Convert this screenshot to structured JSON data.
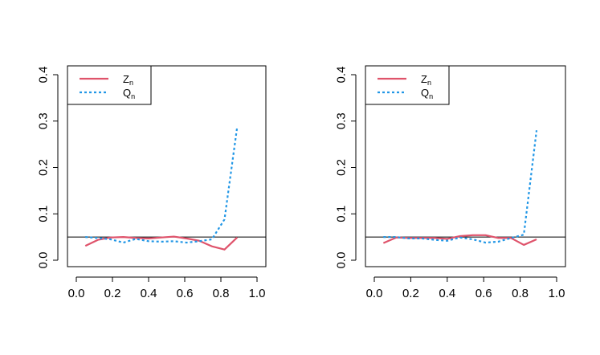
{
  "chart_data": [
    {
      "type": "line",
      "xlim": [
        0,
        1
      ],
      "ylim": [
        0,
        0.4
      ],
      "xticks": [
        0.0,
        0.2,
        0.4,
        0.6,
        0.8,
        1.0
      ],
      "xtick_labels": [
        "0.0",
        "0.2",
        "0.4",
        "0.6",
        "0.8",
        "1.0"
      ],
      "yticks": [
        0.0,
        0.1,
        0.2,
        0.3,
        0.4
      ],
      "ytick_labels": [
        "0.0",
        "0.1",
        "0.2",
        "0.3",
        "0.4"
      ],
      "hline": 0.05,
      "legend_position": "top-left",
      "series": [
        {
          "name": "Z",
          "subscript": "n",
          "color": "#DF536B",
          "style": "solid",
          "x": [
            0.05,
            0.12,
            0.19,
            0.26,
            0.33,
            0.4,
            0.47,
            0.54,
            0.61,
            0.68,
            0.75,
            0.82,
            0.89
          ],
          "y": [
            0.031,
            0.044,
            0.049,
            0.05,
            0.048,
            0.047,
            0.049,
            0.051,
            0.047,
            0.042,
            0.03,
            0.023,
            0.049
          ]
        },
        {
          "name": "Q",
          "subscript": "n",
          "color": "#2297E6",
          "style": "dashed",
          "x": [
            0.05,
            0.12,
            0.19,
            0.26,
            0.33,
            0.4,
            0.47,
            0.54,
            0.61,
            0.68,
            0.75,
            0.82,
            0.89
          ],
          "y": [
            0.05,
            0.048,
            0.045,
            0.038,
            0.046,
            0.041,
            0.04,
            0.041,
            0.038,
            0.041,
            0.045,
            0.088,
            0.287
          ]
        }
      ]
    },
    {
      "type": "line",
      "xlim": [
        0,
        1
      ],
      "ylim": [
        0,
        0.4
      ],
      "xticks": [
        0.0,
        0.2,
        0.4,
        0.6,
        0.8,
        1.0
      ],
      "xtick_labels": [
        "0.0",
        "0.2",
        "0.4",
        "0.6",
        "0.8",
        "1.0"
      ],
      "yticks": [
        0.0,
        0.1,
        0.2,
        0.3,
        0.4
      ],
      "ytick_labels": [
        "0.0",
        "0.1",
        "0.2",
        "0.3",
        "0.4"
      ],
      "hline": 0.05,
      "legend_position": "top-left",
      "series": [
        {
          "name": "Z",
          "subscript": "n",
          "color": "#DF536B",
          "style": "solid",
          "x": [
            0.05,
            0.12,
            0.19,
            0.26,
            0.33,
            0.4,
            0.47,
            0.54,
            0.61,
            0.68,
            0.75,
            0.82,
            0.89
          ],
          "y": [
            0.037,
            0.049,
            0.048,
            0.048,
            0.048,
            0.046,
            0.052,
            0.054,
            0.054,
            0.048,
            0.048,
            0.033,
            0.045
          ]
        },
        {
          "name": "Q",
          "subscript": "n",
          "color": "#2297E6",
          "style": "dashed",
          "x": [
            0.05,
            0.12,
            0.19,
            0.26,
            0.33,
            0.4,
            0.47,
            0.54,
            0.61,
            0.68,
            0.75,
            0.82,
            0.89
          ],
          "y": [
            0.05,
            0.05,
            0.047,
            0.047,
            0.044,
            0.042,
            0.049,
            0.045,
            0.038,
            0.04,
            0.048,
            0.055,
            0.28
          ]
        }
      ]
    }
  ]
}
